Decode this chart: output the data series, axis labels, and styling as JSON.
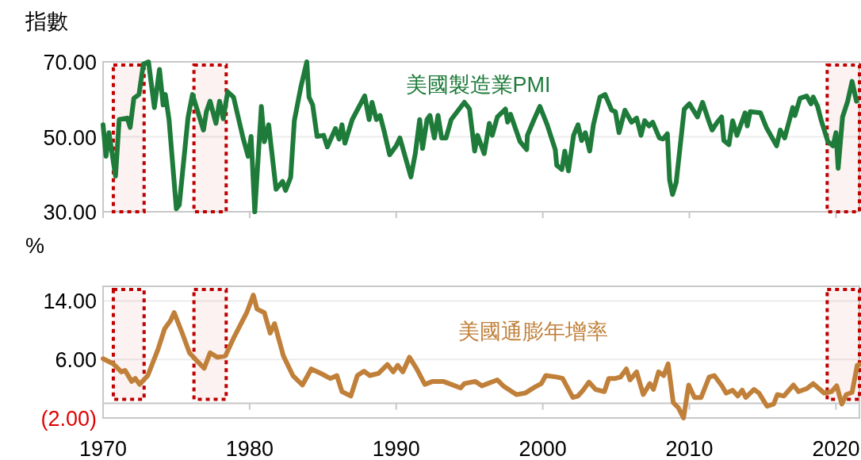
{
  "chart_data": [
    {
      "type": "line",
      "ylabel": "指數",
      "xlim": [
        1970,
        2021.6
      ],
      "ylim": [
        30,
        70
      ],
      "xticks": [
        1970,
        1980,
        1990,
        2000,
        2010,
        2020
      ],
      "yticks": [
        {
          "value": 30,
          "label": "30.00"
        },
        {
          "value": 50,
          "label": "50.00"
        },
        {
          "value": 70,
          "label": "70.00"
        }
      ],
      "tick_labels": "y",
      "grid": "y",
      "bands": [
        {
          "axis": "x",
          "from": 1970.7,
          "to": 1972.8,
          "color": "#c00000"
        },
        {
          "axis": "x",
          "from": 1976.2,
          "to": 1978.4,
          "color": "#c00000"
        },
        {
          "axis": "x",
          "from": 2019.4,
          "to": 2021.6,
          "color": "#c00000"
        }
      ],
      "series": [
        {
          "name": "美國製造業PMI",
          "color": "#1e7b3a",
          "x": [
            1970.0,
            1970.2,
            1970.4,
            1970.85,
            1971.1,
            1971.65,
            1971.85,
            1972.1,
            1972.45,
            1972.75,
            1973.1,
            1973.5,
            1973.85,
            1974.1,
            1974.25,
            1974.5,
            1975.0,
            1975.2,
            1975.8,
            1976.1,
            1976.85,
            1977.05,
            1977.3,
            1977.7,
            1977.95,
            1978.2,
            1978.5,
            1978.9,
            1979.55,
            1979.9,
            1980.1,
            1980.35,
            1980.8,
            1981.0,
            1981.3,
            1981.8,
            1982.25,
            1982.45,
            1982.8,
            1983.05,
            1983.5,
            1983.9,
            1984.05,
            1984.3,
            1984.6,
            1985.05,
            1985.3,
            1985.85,
            1986.1,
            1986.3,
            1986.5,
            1987.0,
            1987.85,
            1988.15,
            1988.35,
            1988.65,
            1988.9,
            1989.2,
            1989.55,
            1990.0,
            1990.25,
            1991.0,
            1991.3,
            1991.6,
            1991.8,
            1992.1,
            1992.3,
            1992.6,
            1992.85,
            1993.1,
            1993.4,
            1993.75,
            1994.65,
            1995.0,
            1995.35,
            1995.55,
            1996.0,
            1996.35,
            1996.55,
            1996.9,
            1997.45,
            1997.6,
            1997.8,
            1998.45,
            1998.9,
            1998.95,
            1999.4,
            1999.8,
            2000.3,
            2000.85,
            2000.95,
            2001.3,
            2001.5,
            2001.75,
            2002.1,
            2002.4,
            2002.65,
            2002.9,
            2003.2,
            2003.45,
            2003.9,
            2004.25,
            2004.7,
            2004.95,
            2005.2,
            2005.6,
            2006.05,
            2006.4,
            2006.7,
            2006.95,
            2007.25,
            2007.5,
            2007.95,
            2008.2,
            2008.5,
            2008.65,
            2008.85,
            2009.1,
            2009.65,
            2010.0,
            2010.55,
            2010.9,
            2011.35,
            2011.55,
            2011.9,
            2012.2,
            2012.35,
            2012.7,
            2012.95,
            2013.25,
            2013.8,
            2013.95,
            2014.15,
            2014.85,
            2015.25,
            2015.95,
            2016.2,
            2016.5,
            2017.05,
            2017.2,
            2017.55,
            2018.0,
            2018.3,
            2018.45,
            2018.75,
            2019.0,
            2019.45,
            2019.8,
            2020.0,
            2020.15,
            2020.45,
            2020.8,
            2021.1,
            2021.4
          ],
          "values": [
            53.2,
            44.8,
            51.1,
            39.5,
            54.6,
            55.0,
            52.5,
            60.3,
            61.3,
            69.4,
            70,
            57.8,
            68.0,
            58.5,
            61.3,
            54.6,
            30.8,
            31.8,
            55.3,
            61.3,
            51.8,
            56.7,
            59.5,
            53.6,
            59.5,
            54.8,
            62.0,
            60.6,
            49.7,
            44.8,
            50.1,
            30,
            58.1,
            48.7,
            53.2,
            36.0,
            38.1,
            35.7,
            39.2,
            54.3,
            63.4,
            70,
            60.6,
            58.5,
            50.1,
            50.4,
            47.3,
            52.2,
            49.4,
            53.2,
            48.3,
            54.6,
            60.9,
            54.6,
            59.2,
            54.6,
            55.7,
            51.1,
            45.2,
            47.6,
            49.7,
            39.3,
            45.5,
            54.6,
            46.9,
            54.6,
            55.7,
            49.7,
            55.7,
            49.7,
            49.7,
            54.6,
            59.2,
            57.4,
            46.2,
            50.4,
            45.5,
            53.6,
            50.4,
            55.3,
            57.4,
            53.9,
            56.0,
            48.7,
            46.6,
            50.4,
            54.6,
            58.1,
            53.2,
            46.6,
            42.4,
            41.3,
            46.2,
            40.9,
            50.4,
            53.2,
            49.0,
            51.1,
            46.2,
            53.2,
            60.6,
            61.3,
            57.1,
            56.7,
            51.1,
            57.1,
            53.9,
            55.0,
            50.4,
            54.3,
            52.9,
            53.9,
            49.7,
            49.4,
            50.8,
            38.5,
            34.6,
            37.8,
            57.4,
            58.8,
            55.3,
            59.2,
            53.9,
            51.8,
            53.9,
            55.3,
            49.0,
            47.9,
            54.3,
            50.4,
            56.4,
            52.9,
            56.7,
            56.4,
            52.5,
            47.6,
            51.8,
            49.7,
            57.8,
            55.7,
            60.3,
            60.9,
            58.8,
            60.6,
            58.1,
            54.3,
            48.7,
            47.6,
            51.1,
            41.6,
            55.3,
            59.5,
            64.8,
            59.5
          ]
        }
      ]
    },
    {
      "type": "line",
      "ylabel": "%",
      "xlim": [
        1970,
        2021.6
      ],
      "ylim": [
        -2,
        16
      ],
      "xticks": [
        1970,
        1980,
        1990,
        2000,
        2010,
        2020
      ],
      "yticks": [
        {
          "value": -2,
          "label": "(2.00)"
        },
        {
          "value": 6,
          "label": "6.00"
        },
        {
          "value": 14,
          "label": "14.00"
        }
      ],
      "grid": "y",
      "bands": [
        {
          "axis": "x",
          "from": 1970.7,
          "to": 1972.8,
          "color": "#c00000"
        },
        {
          "axis": "x",
          "from": 1976.2,
          "to": 1978.4,
          "color": "#c00000"
        },
        {
          "axis": "x",
          "from": 2019.4,
          "to": 2021.6,
          "color": "#c00000"
        }
      ],
      "series": [
        {
          "name": "美國通膨年增率",
          "color": "#c0803a",
          "x": [
            1970.0,
            1970.7,
            1971.25,
            1971.5,
            1971.95,
            1972.2,
            1972.5,
            1973.05,
            1973.75,
            1974.2,
            1974.6,
            1974.85,
            1975.4,
            1975.9,
            1976.45,
            1976.9,
            1977.3,
            1977.8,
            1978.35,
            1978.9,
            1979.8,
            1980.25,
            1980.5,
            1981.0,
            1981.4,
            1981.7,
            1982.3,
            1982.95,
            1983.6,
            1984.2,
            1984.85,
            1985.5,
            1985.95,
            1986.3,
            1986.9,
            1987.35,
            1987.8,
            1988.2,
            1988.8,
            1989.4,
            1989.8,
            1990.1,
            1990.45,
            1990.9,
            1991.4,
            1991.95,
            1992.5,
            1993.2,
            1993.75,
            1994.4,
            1994.65,
            1995.4,
            1995.85,
            1996.9,
            1997.35,
            1998.2,
            1998.8,
            1999.35,
            1999.9,
            2000.2,
            2000.95,
            2001.35,
            2002.05,
            2002.4,
            2002.75,
            2003.15,
            2003.6,
            2004.2,
            2004.5,
            2004.95,
            2005.3,
            2005.7,
            2005.95,
            2006.4,
            2006.85,
            2007.3,
            2007.55,
            2007.9,
            2008.25,
            2008.55,
            2008.9,
            2009.25,
            2009.6,
            2009.95,
            2010.35,
            2010.8,
            2011.35,
            2011.7,
            2012.25,
            2012.5,
            2012.95,
            2013.3,
            2013.6,
            2013.85,
            2014.4,
            2014.75,
            2015.3,
            2015.75,
            2016.0,
            2016.45,
            2017.1,
            2017.45,
            2018.0,
            2018.45,
            2019.2,
            2019.7,
            2020.05,
            2020.4,
            2020.7,
            2021.1,
            2021.45,
            2021.6
          ],
          "values": [
            6.1,
            5.4,
            4.3,
            4.5,
            3.0,
            3.4,
            2.6,
            3.8,
            7.4,
            10.2,
            11.3,
            12.4,
            9.6,
            6.9,
            5.7,
            4.8,
            6.9,
            6.3,
            6.5,
            8.9,
            12.4,
            14.8,
            12.9,
            12.4,
            9.6,
            10.9,
            6.5,
            3.8,
            2.5,
            4.7,
            4.1,
            3.4,
            3.8,
            1.6,
            1.0,
            3.8,
            4.4,
            3.8,
            4.1,
            5.3,
            4.3,
            5.2,
            4.3,
            6.3,
            4.7,
            2.6,
            3.0,
            3.0,
            2.6,
            2.1,
            2.7,
            3.0,
            2.4,
            3.2,
            2.3,
            1.2,
            1.4,
            2.1,
            2.7,
            3.8,
            3.6,
            3.4,
            0.8,
            1.0,
            1.8,
            2.9,
            1.9,
            1.6,
            3.4,
            3.4,
            3.6,
            4.7,
            3.2,
            4.3,
            1.2,
            2.7,
            1.9,
            4.3,
            3.8,
            5.4,
            0.1,
            -0.6,
            -2.0,
            2.5,
            0.8,
            0.8,
            3.6,
            3.8,
            2.3,
            1.4,
            1.8,
            1.0,
            1.8,
            0.8,
            1.9,
            1.4,
            -0.4,
            -0.1,
            1.2,
            1.0,
            2.5,
            1.6,
            2.0,
            2.7,
            1.4,
            1.6,
            2.4,
            -0.1,
            1.2,
            1.5,
            5.2,
            5.3
          ]
        }
      ]
    }
  ]
}
